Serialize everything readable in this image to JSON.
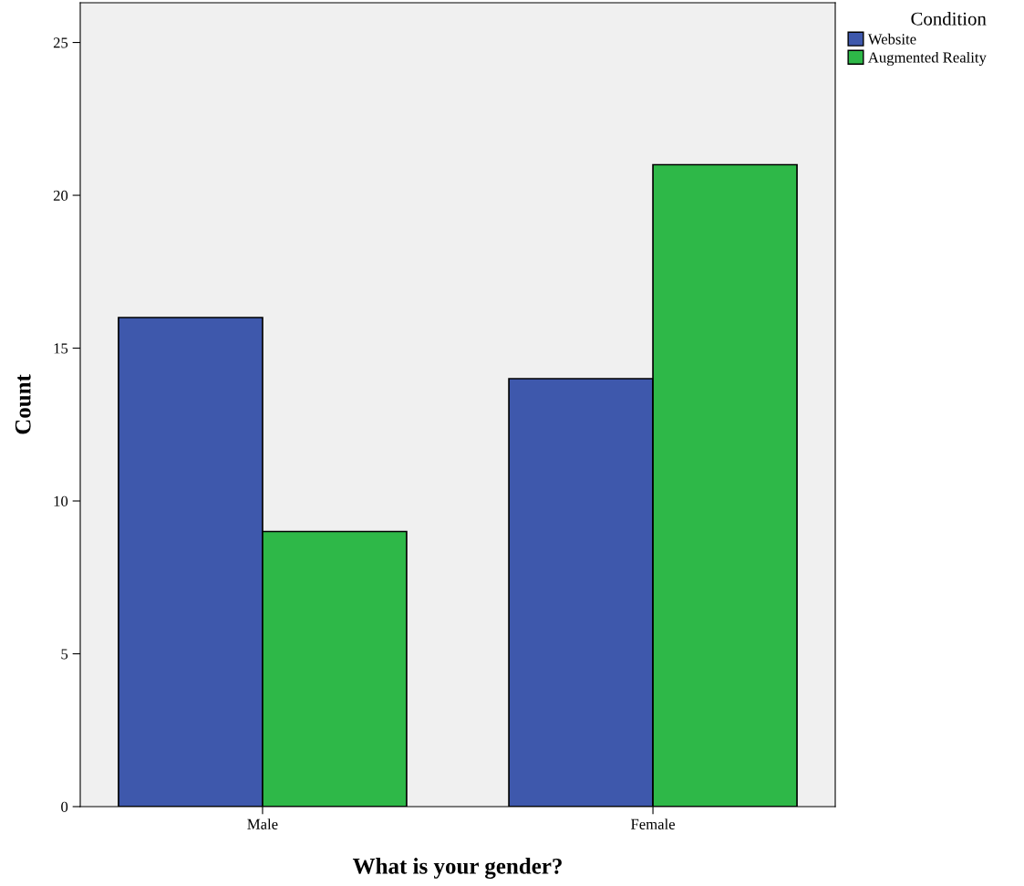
{
  "chart_data": {
    "type": "bar",
    "xlabel": "What is your gender?",
    "ylabel": "Count",
    "categories": [
      "Male",
      "Female"
    ],
    "series": [
      {
        "name": "Website",
        "color": "#3e58ac",
        "values": [
          16,
          14
        ]
      },
      {
        "name": "Augmented Reality",
        "color": "#2eb848",
        "values": [
          9,
          21
        ]
      }
    ],
    "legend_title": "Condition",
    "legend": "top right",
    "ylim": [
      0,
      26.3
    ],
    "yticks": [
      0,
      5,
      10,
      15,
      20,
      25
    ],
    "grid": false
  }
}
